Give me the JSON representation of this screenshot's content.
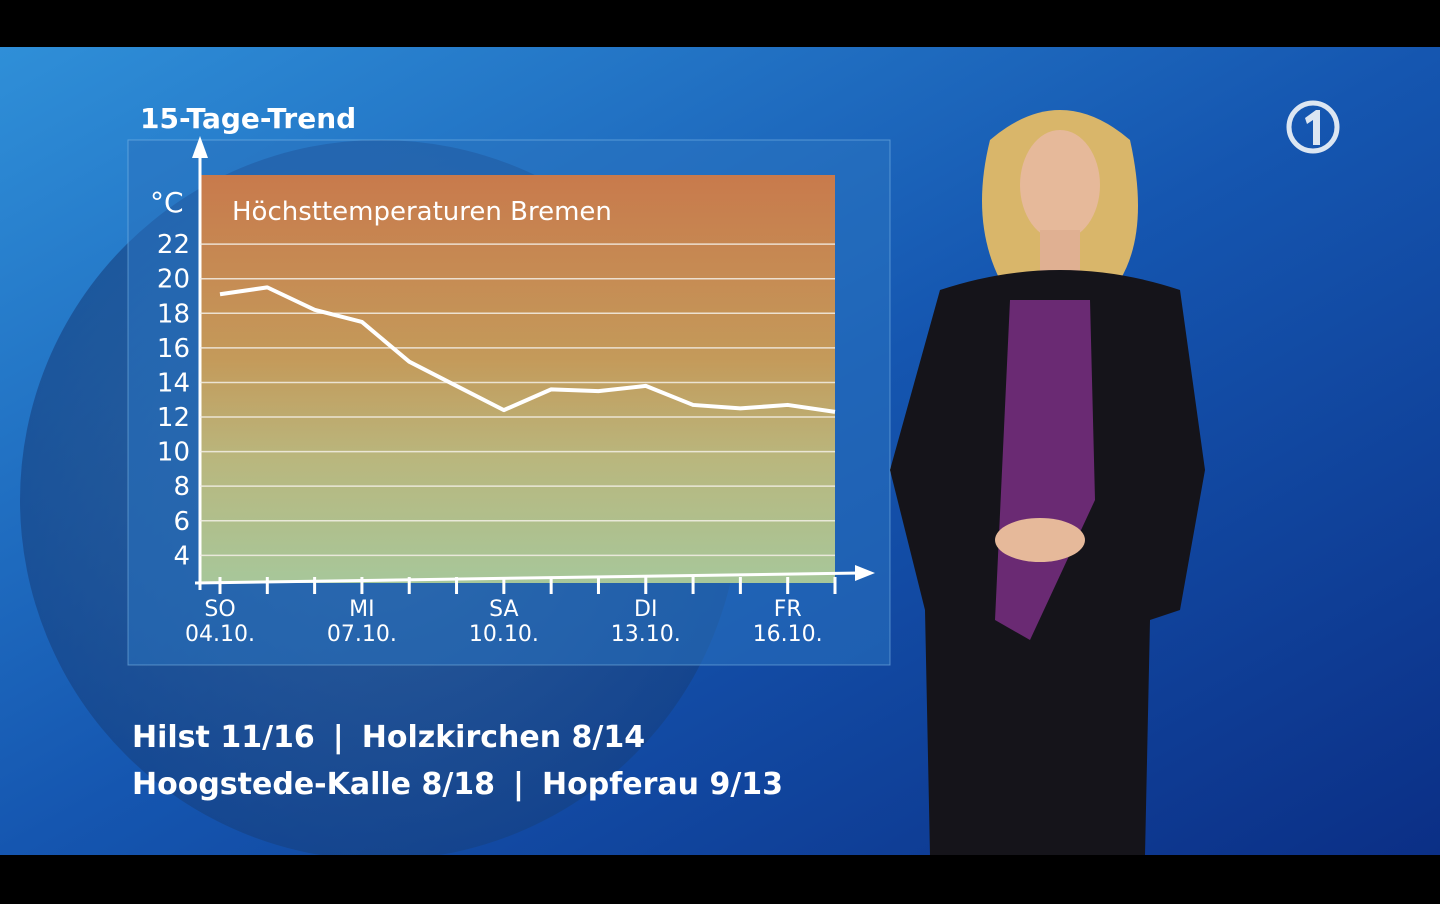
{
  "chart_data": {
    "type": "line",
    "title": "15-Tage-Trend",
    "subtitle": "Höchsttemperaturen Bremen",
    "y_label": "°C",
    "categories": [
      "04.10.",
      null,
      null,
      "07.10.",
      null,
      null,
      "10.10.",
      null,
      null,
      "13.10.",
      null,
      null,
      "16.10.",
      null
    ],
    "category_weekdays": [
      "SO",
      null,
      null,
      "MI",
      null,
      null,
      "SA",
      null,
      null,
      "DI",
      null,
      null,
      "FR",
      null
    ],
    "series": [
      {
        "name": "Höchsttemperaturen Bremen",
        "color": "#ffffff",
        "values": [
          19.1,
          19.5,
          18.2,
          17.5,
          15.2,
          13.8,
          12.4,
          13.6,
          13.5,
          13.8,
          12.7,
          12.5,
          12.7,
          12.3
        ]
      }
    ],
    "ylim": [
      2.4,
      26
    ],
    "yticks": [
      4,
      6,
      8,
      10,
      12,
      14,
      16,
      18,
      20,
      22
    ],
    "grid": true
  },
  "ticker": {
    "separator": "|",
    "lines": [
      [
        "Hilst 11/16",
        "Holzkirchen 8/14"
      ],
      [
        "Hoogstede-Kalle 8/18",
        "Hopferau 9/13"
      ]
    ]
  }
}
